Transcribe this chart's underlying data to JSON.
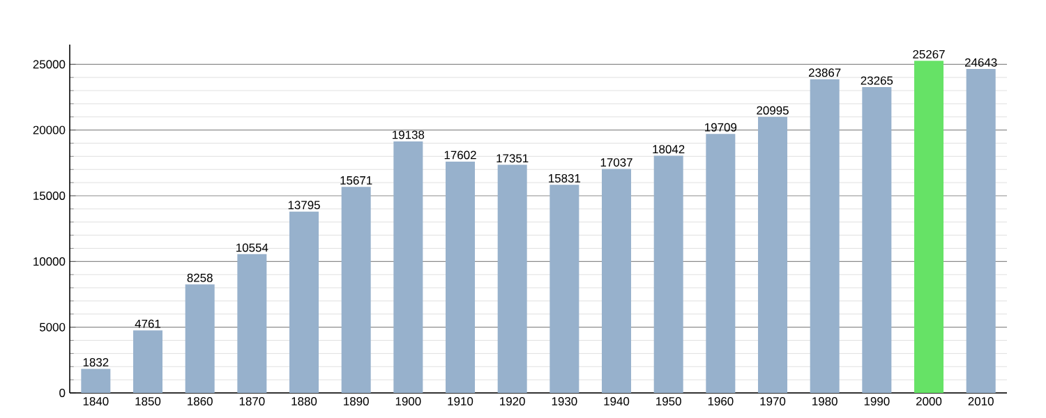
{
  "chart_data": {
    "type": "bar",
    "categories": [
      "1840",
      "1850",
      "1860",
      "1870",
      "1880",
      "1890",
      "1900",
      "1910",
      "1920",
      "1930",
      "1940",
      "1950",
      "1960",
      "1970",
      "1980",
      "1990",
      "2000",
      "2010"
    ],
    "values": [
      1832,
      4761,
      8258,
      10554,
      13795,
      15671,
      19138,
      17602,
      17351,
      15831,
      17037,
      18042,
      19709,
      20995,
      23867,
      23265,
      25267,
      24643
    ],
    "colors": [
      "#97b1cc",
      "#97b1cc",
      "#97b1cc",
      "#97b1cc",
      "#97b1cc",
      "#97b1cc",
      "#97b1cc",
      "#97b1cc",
      "#97b1cc",
      "#97b1cc",
      "#97b1cc",
      "#97b1cc",
      "#97b1cc",
      "#97b1cc",
      "#97b1cc",
      "#97b1cc",
      "#66e266",
      "#97b1cc"
    ],
    "ylim": [
      0,
      26500
    ],
    "yticks": [
      0,
      5000,
      10000,
      15000,
      20000,
      25000
    ],
    "grid": "y",
    "data_labels": true
  }
}
